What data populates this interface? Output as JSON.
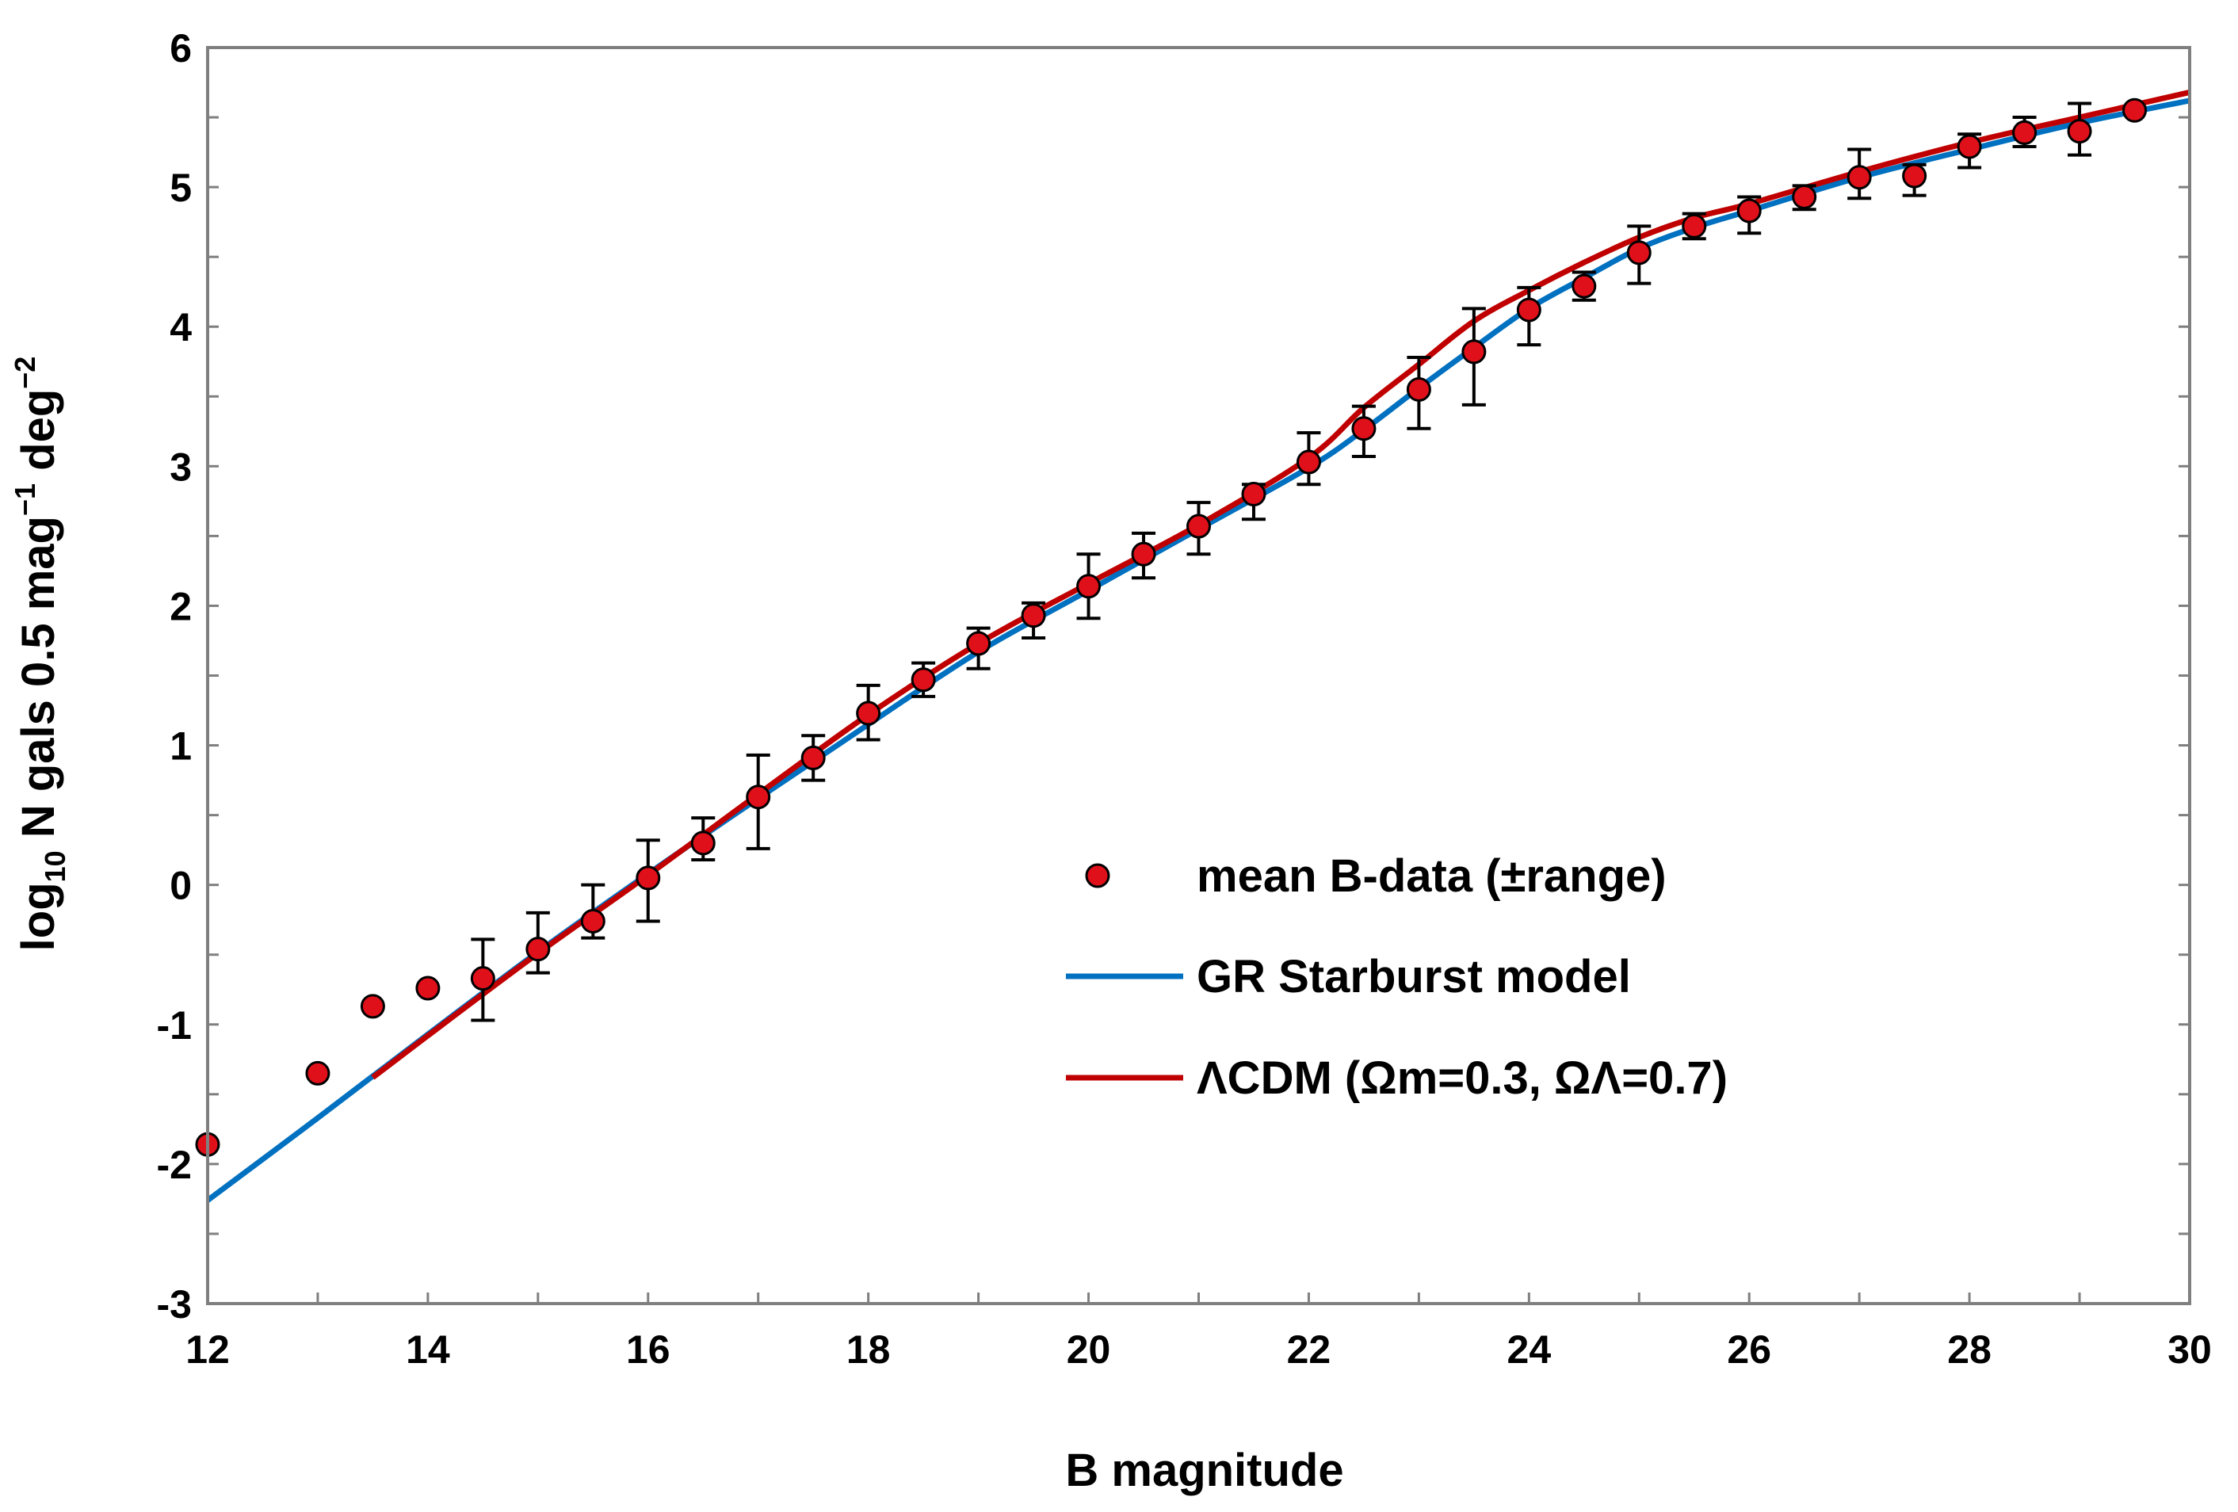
{
  "chart_data": {
    "type": "scatter",
    "title": "",
    "xlabel": "B magnitude",
    "ylabel": {
      "base": "log",
      "base_sub": "10",
      "main": " N gals 0.5 mag",
      "mag_exp": "−1",
      "unit": " deg",
      "deg_exp": "−2"
    },
    "xlim": [
      12,
      30
    ],
    "ylim": [
      -3,
      6
    ],
    "xticks": [
      "12",
      "14",
      "16",
      "18",
      "20",
      "22",
      "24",
      "26",
      "28",
      "30"
    ],
    "yticks": [
      "-3",
      "-2",
      "-1",
      "0",
      "1",
      "2",
      "3",
      "4",
      "5",
      "6"
    ],
    "x_minor_step": 1,
    "y_minor_step": 0.5,
    "grid": false,
    "legend_position": "center-right",
    "series": [
      {
        "name": "mean B-data (±range)",
        "kind": "points",
        "color": "#e0101a",
        "edge_color": "#000000",
        "points": [
          {
            "x": 12,
            "y": -1.86
          },
          {
            "x": 13,
            "y": -1.35
          },
          {
            "x": 13.5,
            "y": -0.87
          },
          {
            "x": 14,
            "y": -0.74
          },
          {
            "x": 14.5,
            "y": -0.67,
            "lo": -0.97,
            "hi": -0.39
          },
          {
            "x": 15,
            "y": -0.46,
            "lo": -0.63,
            "hi": -0.2
          },
          {
            "x": 15.5,
            "y": -0.26,
            "lo": -0.38,
            "hi": 0.0
          },
          {
            "x": 16,
            "y": 0.05,
            "lo": -0.26,
            "hi": 0.32
          },
          {
            "x": 16.5,
            "y": 0.3,
            "lo": 0.18,
            "hi": 0.48
          },
          {
            "x": 17,
            "y": 0.63,
            "lo": 0.26,
            "hi": 0.93
          },
          {
            "x": 17.5,
            "y": 0.91,
            "lo": 0.75,
            "hi": 1.07
          },
          {
            "x": 18,
            "y": 1.23,
            "lo": 1.04,
            "hi": 1.43
          },
          {
            "x": 18.5,
            "y": 1.47,
            "lo": 1.35,
            "hi": 1.59
          },
          {
            "x": 19,
            "y": 1.73,
            "lo": 1.55,
            "hi": 1.84
          },
          {
            "x": 19.5,
            "y": 1.93,
            "lo": 1.77,
            "hi": 2.02
          },
          {
            "x": 20,
            "y": 2.14,
            "lo": 1.91,
            "hi": 2.37
          },
          {
            "x": 20.5,
            "y": 2.37,
            "lo": 2.2,
            "hi": 2.52
          },
          {
            "x": 21,
            "y": 2.57,
            "lo": 2.37,
            "hi": 2.74
          },
          {
            "x": 21.5,
            "y": 2.8,
            "lo": 2.62,
            "hi": 2.87
          },
          {
            "x": 22,
            "y": 3.03,
            "lo": 2.87,
            "hi": 3.24
          },
          {
            "x": 22.5,
            "y": 3.27,
            "lo": 3.07,
            "hi": 3.43
          },
          {
            "x": 23,
            "y": 3.55,
            "lo": 3.27,
            "hi": 3.78
          },
          {
            "x": 23.5,
            "y": 3.82,
            "lo": 3.44,
            "hi": 4.13
          },
          {
            "x": 24,
            "y": 4.12,
            "lo": 3.87,
            "hi": 4.28
          },
          {
            "x": 24.5,
            "y": 4.29,
            "lo": 4.19,
            "hi": 4.39
          },
          {
            "x": 25,
            "y": 4.53,
            "lo": 4.31,
            "hi": 4.72
          },
          {
            "x": 25.5,
            "y": 4.72,
            "lo": 4.63,
            "hi": 4.81
          },
          {
            "x": 26,
            "y": 4.83,
            "lo": 4.67,
            "hi": 4.93
          },
          {
            "x": 26.5,
            "y": 4.93,
            "lo": 4.84,
            "hi": 5.01
          },
          {
            "x": 27,
            "y": 5.07,
            "lo": 4.92,
            "hi": 5.27
          },
          {
            "x": 27.5,
            "y": 5.08,
            "lo": 4.94,
            "hi": 5.16
          },
          {
            "x": 28,
            "y": 5.29,
            "lo": 5.14,
            "hi": 5.38
          },
          {
            "x": 28.5,
            "y": 5.39,
            "lo": 5.29,
            "hi": 5.5
          },
          {
            "x": 29,
            "y": 5.4,
            "lo": 5.23,
            "hi": 5.6
          },
          {
            "x": 29.5,
            "y": 5.55
          }
        ]
      },
      {
        "name": "GR Starburst model",
        "kind": "line",
        "color": "#0070c0",
        "x": [
          12,
          13,
          14,
          15,
          16,
          17,
          18,
          19,
          20,
          21,
          22,
          22.5,
          23,
          23.5,
          24,
          24.5,
          25,
          25.5,
          26,
          27,
          28,
          29,
          30
        ],
        "y": [
          -2.26,
          -1.67,
          -1.07,
          -0.48,
          0.08,
          0.62,
          1.15,
          1.67,
          2.11,
          2.55,
          2.99,
          3.26,
          3.56,
          3.85,
          4.13,
          4.35,
          4.56,
          4.71,
          4.83,
          5.07,
          5.27,
          5.46,
          5.62
        ]
      },
      {
        "name": "ΛCDM (Ωm=0.3, ΩΛ=0.7)",
        "kind": "line",
        "color": "#c00000",
        "x": [
          13.5,
          14,
          15,
          16,
          17,
          18,
          19,
          20,
          21,
          22,
          22.5,
          23,
          23.5,
          24,
          24.5,
          25,
          25.5,
          26,
          27,
          28,
          29,
          30
        ],
        "y": [
          -1.38,
          -1.08,
          -0.49,
          0.07,
          0.65,
          1.22,
          1.73,
          2.16,
          2.58,
          3.06,
          3.42,
          3.73,
          4.04,
          4.26,
          4.46,
          4.64,
          4.78,
          4.88,
          5.11,
          5.32,
          5.5,
          5.68
        ]
      }
    ]
  }
}
